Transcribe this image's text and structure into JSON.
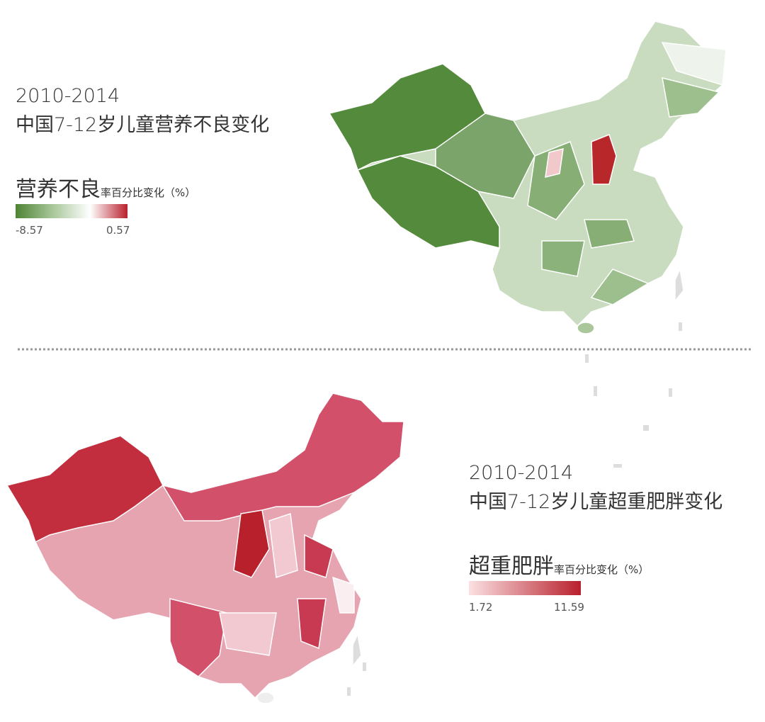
{
  "panels": [
    {
      "years": "2010-2014",
      "title": "中国7-12岁儿童营养不良变化",
      "legend_title": "营养不良",
      "legend_subtitle": "率百分比变化（%）",
      "legend_min": -8.57,
      "legend_max": 0.57,
      "colors": [
        "#4e8433",
        "#a9c79b",
        "#ffffff",
        "#b8202c"
      ]
    },
    {
      "years": "2010-2014",
      "title": "中国7-12岁儿童超重肥胖变化",
      "legend_title": "超重肥胖",
      "legend_subtitle": "率百分比变化（%）",
      "legend_min": 1.72,
      "legend_max": 11.59,
      "colors": [
        "#fbe0e2",
        "#b8202c"
      ]
    }
  ]
}
